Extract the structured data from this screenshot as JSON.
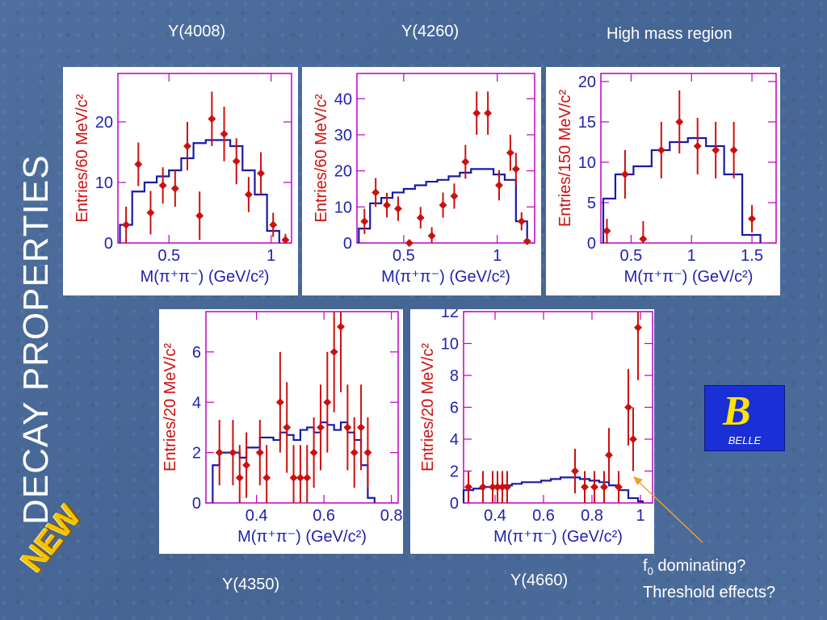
{
  "slide": {
    "vertical_title": "DECAY PROPERTIES",
    "badge": "NEW",
    "logo_text": "BELLE",
    "logo_letter": "B",
    "captions": {
      "y4008": "Y(4008)",
      "y4260": "Y(4260)",
      "high_mass": "High mass region",
      "y4350": "Y(4350)",
      "y4660": "Y(4660)"
    },
    "note_line1_main": "f",
    "note_line1_sub": "0",
    "note_line1_rest": " dominating?",
    "note_line2": "Threshold effects?"
  },
  "colors": {
    "frame": "#c000c0",
    "data": "#cc1010",
    "histogram": "#1a1aa8",
    "arrow": "#f0a030"
  },
  "chart_data": [
    {
      "id": "y4008",
      "type": "scatter",
      "xlabel": "M(π⁺π⁻) (GeV/c²)",
      "ylabel": "Entries/60 MeV/c²",
      "xlim": [
        0.25,
        1.1
      ],
      "ylim": [
        0,
        28
      ],
      "xticks": [
        0.5,
        1
      ],
      "xtick_labels": [
        "0.5",
        "1"
      ],
      "yticks": [
        0,
        10,
        20
      ],
      "ytick_labels": [
        "0",
        "10",
        "20"
      ],
      "points": [
        {
          "x": 0.29,
          "y": 3,
          "err": 3
        },
        {
          "x": 0.35,
          "y": 13,
          "err": 3.6
        },
        {
          "x": 0.41,
          "y": 5,
          "err": 3.6
        },
        {
          "x": 0.47,
          "y": 9.5,
          "err": 3
        },
        {
          "x": 0.53,
          "y": 9,
          "err": 3
        },
        {
          "x": 0.59,
          "y": 16,
          "err": 4
        },
        {
          "x": 0.65,
          "y": 4.5,
          "err": 4
        },
        {
          "x": 0.71,
          "y": 20.5,
          "err": 4.5
        },
        {
          "x": 0.77,
          "y": 18,
          "err": 4.5
        },
        {
          "x": 0.83,
          "y": 13.5,
          "err": 3.8
        },
        {
          "x": 0.89,
          "y": 8,
          "err": 2.9
        },
        {
          "x": 0.95,
          "y": 11.5,
          "err": 3.5
        },
        {
          "x": 1.01,
          "y": 3,
          "err": 2
        },
        {
          "x": 1.07,
          "y": 0.5,
          "err": 1
        }
      ],
      "histogram_edges": [
        0.26,
        0.32,
        0.38,
        0.44,
        0.5,
        0.56,
        0.62,
        0.68,
        0.74,
        0.8,
        0.86,
        0.92,
        0.98,
        1.04
      ],
      "histogram_values": [
        3,
        8.5,
        10,
        11,
        12,
        14,
        16.5,
        17,
        17,
        16,
        12,
        8,
        2
      ]
    },
    {
      "id": "y4260",
      "type": "scatter",
      "xlabel": "M(π⁺π⁻) (GeV/c²)",
      "ylabel": "Entries/60 MeV/c²",
      "xlim": [
        0.25,
        1.2
      ],
      "ylim": [
        0,
        47
      ],
      "xticks": [
        0.5,
        1
      ],
      "xtick_labels": [
        "0.5",
        "1"
      ],
      "yticks": [
        0,
        10,
        20,
        30,
        40
      ],
      "ytick_labels": [
        "0",
        "10",
        "20",
        "30",
        "40"
      ],
      "points": [
        {
          "x": 0.29,
          "y": 6,
          "err": 3.5
        },
        {
          "x": 0.35,
          "y": 14,
          "err": 4
        },
        {
          "x": 0.41,
          "y": 10.5,
          "err": 3.4
        },
        {
          "x": 0.47,
          "y": 9.5,
          "err": 3.4
        },
        {
          "x": 0.53,
          "y": 0,
          "err": 0
        },
        {
          "x": 0.59,
          "y": 7,
          "err": 3
        },
        {
          "x": 0.65,
          "y": 2,
          "err": 2.4
        },
        {
          "x": 0.71,
          "y": 10.5,
          "err": 3.5
        },
        {
          "x": 0.77,
          "y": 13,
          "err": 3.5
        },
        {
          "x": 0.83,
          "y": 22.5,
          "err": 4.7
        },
        {
          "x": 0.89,
          "y": 36,
          "err": 6
        },
        {
          "x": 0.95,
          "y": 36,
          "err": 6
        },
        {
          "x": 1.01,
          "y": 16,
          "err": 4.2
        },
        {
          "x": 1.07,
          "y": 25,
          "err": 5
        },
        {
          "x": 1.1,
          "y": 20.5,
          "err": 4.5
        },
        {
          "x": 1.13,
          "y": 6,
          "err": 2.5
        },
        {
          "x": 1.16,
          "y": 0.5,
          "err": 0.8
        }
      ],
      "histogram_edges": [
        0.26,
        0.32,
        0.38,
        0.44,
        0.5,
        0.56,
        0.62,
        0.68,
        0.74,
        0.8,
        0.86,
        0.92,
        0.98,
        1.04,
        1.1,
        1.16
      ],
      "histogram_values": [
        4,
        11,
        12.5,
        14,
        15,
        16,
        17,
        17.5,
        18.5,
        19.5,
        20.5,
        20.5,
        19,
        17.5,
        6
      ]
    },
    {
      "id": "high_mass",
      "type": "scatter",
      "xlabel": "M(π⁺π⁻) (GeV/c²)",
      "ylabel": "Entries/150 MeV/c²",
      "xlim": [
        0.25,
        1.7
      ],
      "ylim": [
        0,
        21
      ],
      "xticks": [
        0.5,
        1,
        1.5
      ],
      "xtick_labels": [
        "0.5",
        "1",
        "1.5"
      ],
      "yticks": [
        0,
        5,
        10,
        15,
        20
      ],
      "ytick_labels": [
        "0",
        "5",
        "10",
        "15",
        "20"
      ],
      "points": [
        {
          "x": 0.3,
          "y": 1.5,
          "err": 1.5
        },
        {
          "x": 0.45,
          "y": 8.5,
          "err": 3
        },
        {
          "x": 0.6,
          "y": 0.5,
          "err": 2.2
        },
        {
          "x": 0.75,
          "y": 11.5,
          "err": 3.5
        },
        {
          "x": 0.9,
          "y": 15,
          "err": 3.9
        },
        {
          "x": 1.05,
          "y": 12,
          "err": 3.5
        },
        {
          "x": 1.2,
          "y": 11.5,
          "err": 3.5
        },
        {
          "x": 1.35,
          "y": 11.5,
          "err": 3.5
        },
        {
          "x": 1.5,
          "y": 3,
          "err": 1.7
        }
      ],
      "histogram_edges": [
        0.27,
        0.37,
        0.52,
        0.67,
        0.82,
        0.97,
        1.12,
        1.27,
        1.42,
        1.57
      ],
      "histogram_values": [
        5.5,
        8.5,
        9.5,
        11.5,
        12.5,
        13,
        12,
        8.5,
        1
      ]
    },
    {
      "id": "y4350",
      "type": "scatter",
      "xlabel": "M(π⁺π⁻) (GeV/c²)",
      "ylabel": "Entries/20 MeV/c²",
      "xlim": [
        0.25,
        0.82
      ],
      "ylim": [
        0,
        7.6
      ],
      "xticks": [
        0.4,
        0.6,
        0.8
      ],
      "xtick_labels": [
        "0.4",
        "0.6",
        "0.8"
      ],
      "yticks": [
        0,
        2,
        4,
        6
      ],
      "ytick_labels": [
        "0",
        "2",
        "4",
        "6"
      ],
      "points": [
        {
          "x": 0.29,
          "y": 2,
          "err": 1.3
        },
        {
          "x": 0.33,
          "y": 2,
          "err": 1.3
        },
        {
          "x": 0.35,
          "y": 1,
          "err": 1.3
        },
        {
          "x": 0.37,
          "y": 1.5,
          "err": 1.3
        },
        {
          "x": 0.41,
          "y": 2,
          "err": 1.3
        },
        {
          "x": 0.43,
          "y": 1,
          "err": 1.3
        },
        {
          "x": 0.47,
          "y": 4,
          "err": 2
        },
        {
          "x": 0.49,
          "y": 3,
          "err": 1.8
        },
        {
          "x": 0.51,
          "y": 1,
          "err": 1.3
        },
        {
          "x": 0.53,
          "y": 1,
          "err": 1.3
        },
        {
          "x": 0.55,
          "y": 1,
          "err": 1.3
        },
        {
          "x": 0.57,
          "y": 2,
          "err": 1.4
        },
        {
          "x": 0.59,
          "y": 3,
          "err": 1.7
        },
        {
          "x": 0.61,
          "y": 4,
          "err": 2
        },
        {
          "x": 0.63,
          "y": 6,
          "err": 2.4
        },
        {
          "x": 0.65,
          "y": 7,
          "err": 2.6
        },
        {
          "x": 0.67,
          "y": 3,
          "err": 1.7
        },
        {
          "x": 0.69,
          "y": 2,
          "err": 1.4
        },
        {
          "x": 0.71,
          "y": 3,
          "err": 1.7
        },
        {
          "x": 0.73,
          "y": 2,
          "err": 1.4
        }
      ],
      "histogram_edges": [
        0.27,
        0.29,
        0.31,
        0.33,
        0.35,
        0.37,
        0.39,
        0.41,
        0.43,
        0.45,
        0.47,
        0.49,
        0.51,
        0.53,
        0.55,
        0.57,
        0.59,
        0.61,
        0.63,
        0.65,
        0.67,
        0.69,
        0.71,
        0.73,
        0.75
      ],
      "histogram_values": [
        1.5,
        2,
        2,
        2,
        1.8,
        2.2,
        2.2,
        2.6,
        2.6,
        2.5,
        2.8,
        2.7,
        2.5,
        2.9,
        3,
        2.8,
        3.2,
        3.1,
        2.9,
        3.2,
        2.8,
        2.5,
        1.5,
        0.2
      ]
    },
    {
      "id": "y4660",
      "type": "scatter",
      "xlabel": "M(π⁺π⁻) (GeV/c²)",
      "ylabel": "Entries/20 MeV/c²",
      "xlim": [
        0.27,
        1.05
      ],
      "ylim": [
        0,
        12
      ],
      "xticks": [
        0.4,
        0.6,
        0.8,
        1
      ],
      "xtick_labels": [
        "0.4",
        "0.6",
        "0.8",
        "1"
      ],
      "yticks": [
        0,
        2,
        4,
        6,
        8,
        10,
        12
      ],
      "ytick_labels": [
        "0",
        "2",
        "4",
        "6",
        "8",
        "10",
        "12"
      ],
      "points": [
        {
          "x": 0.29,
          "y": 1,
          "err": 1
        },
        {
          "x": 0.35,
          "y": 1,
          "err": 1
        },
        {
          "x": 0.39,
          "y": 1,
          "err": 1
        },
        {
          "x": 0.41,
          "y": 1,
          "err": 1
        },
        {
          "x": 0.43,
          "y": 1,
          "err": 1
        },
        {
          "x": 0.45,
          "y": 1,
          "err": 1
        },
        {
          "x": 0.73,
          "y": 2,
          "err": 1.4
        },
        {
          "x": 0.77,
          "y": 1,
          "err": 1
        },
        {
          "x": 0.81,
          "y": 1,
          "err": 1
        },
        {
          "x": 0.85,
          "y": 1,
          "err": 1
        },
        {
          "x": 0.87,
          "y": 3,
          "err": 1.7
        },
        {
          "x": 0.91,
          "y": 1,
          "err": 1
        },
        {
          "x": 0.95,
          "y": 6,
          "err": 2.4
        },
        {
          "x": 0.97,
          "y": 4,
          "err": 2
        },
        {
          "x": 0.99,
          "y": 11,
          "err": 3.3
        }
      ],
      "histogram_edges": [
        0.27,
        0.31,
        0.35,
        0.39,
        0.43,
        0.47,
        0.51,
        0.55,
        0.59,
        0.63,
        0.67,
        0.71,
        0.75,
        0.79,
        0.83,
        0.87,
        0.91,
        0.95,
        0.99,
        1.01
      ],
      "histogram_values": [
        0.8,
        0.9,
        1,
        1,
        1.1,
        1.2,
        1.3,
        1.3,
        1.4,
        1.5,
        1.6,
        1.6,
        1.5,
        1.4,
        1.3,
        1.1,
        0.8,
        0.3,
        0.1
      ]
    }
  ]
}
